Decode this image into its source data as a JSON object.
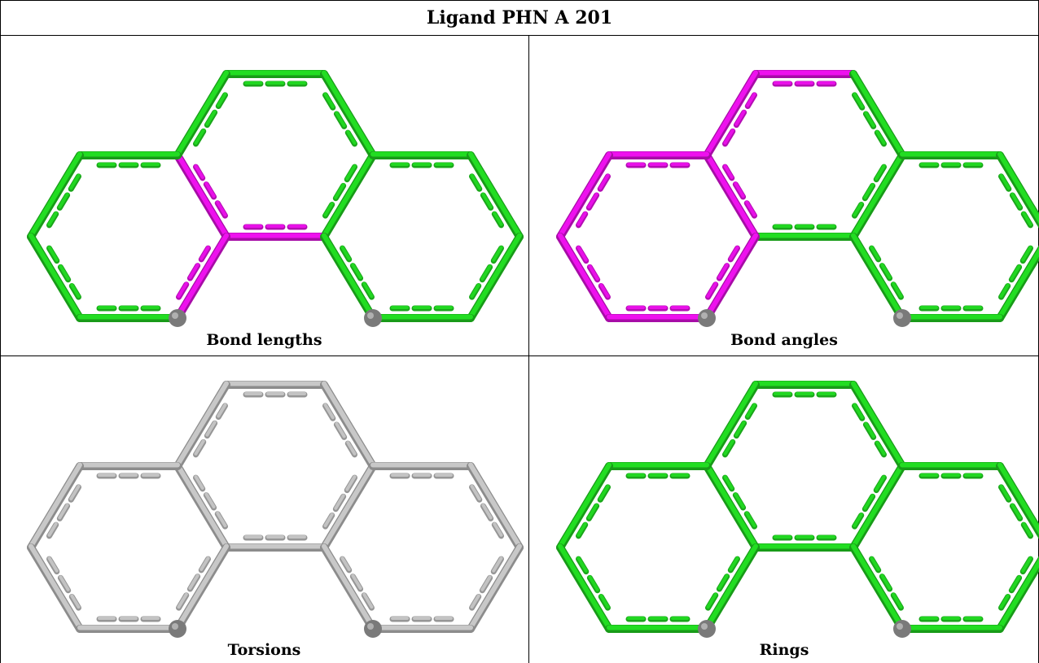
{
  "title": "Ligand PHN A 201",
  "panels": [
    {
      "caption": "Bond lengths",
      "scheme": "bond-lengths"
    },
    {
      "caption": "Bond angles",
      "scheme": "bond-angles"
    },
    {
      "caption": "Torsions",
      "scheme": "torsions"
    },
    {
      "caption": "Rings",
      "scheme": "rings"
    }
  ],
  "colors": {
    "ok": "#22dd22",
    "outlier": "#ee11ee",
    "neutral": "#c8c8c8",
    "atom": "#7a7a7a"
  }
}
